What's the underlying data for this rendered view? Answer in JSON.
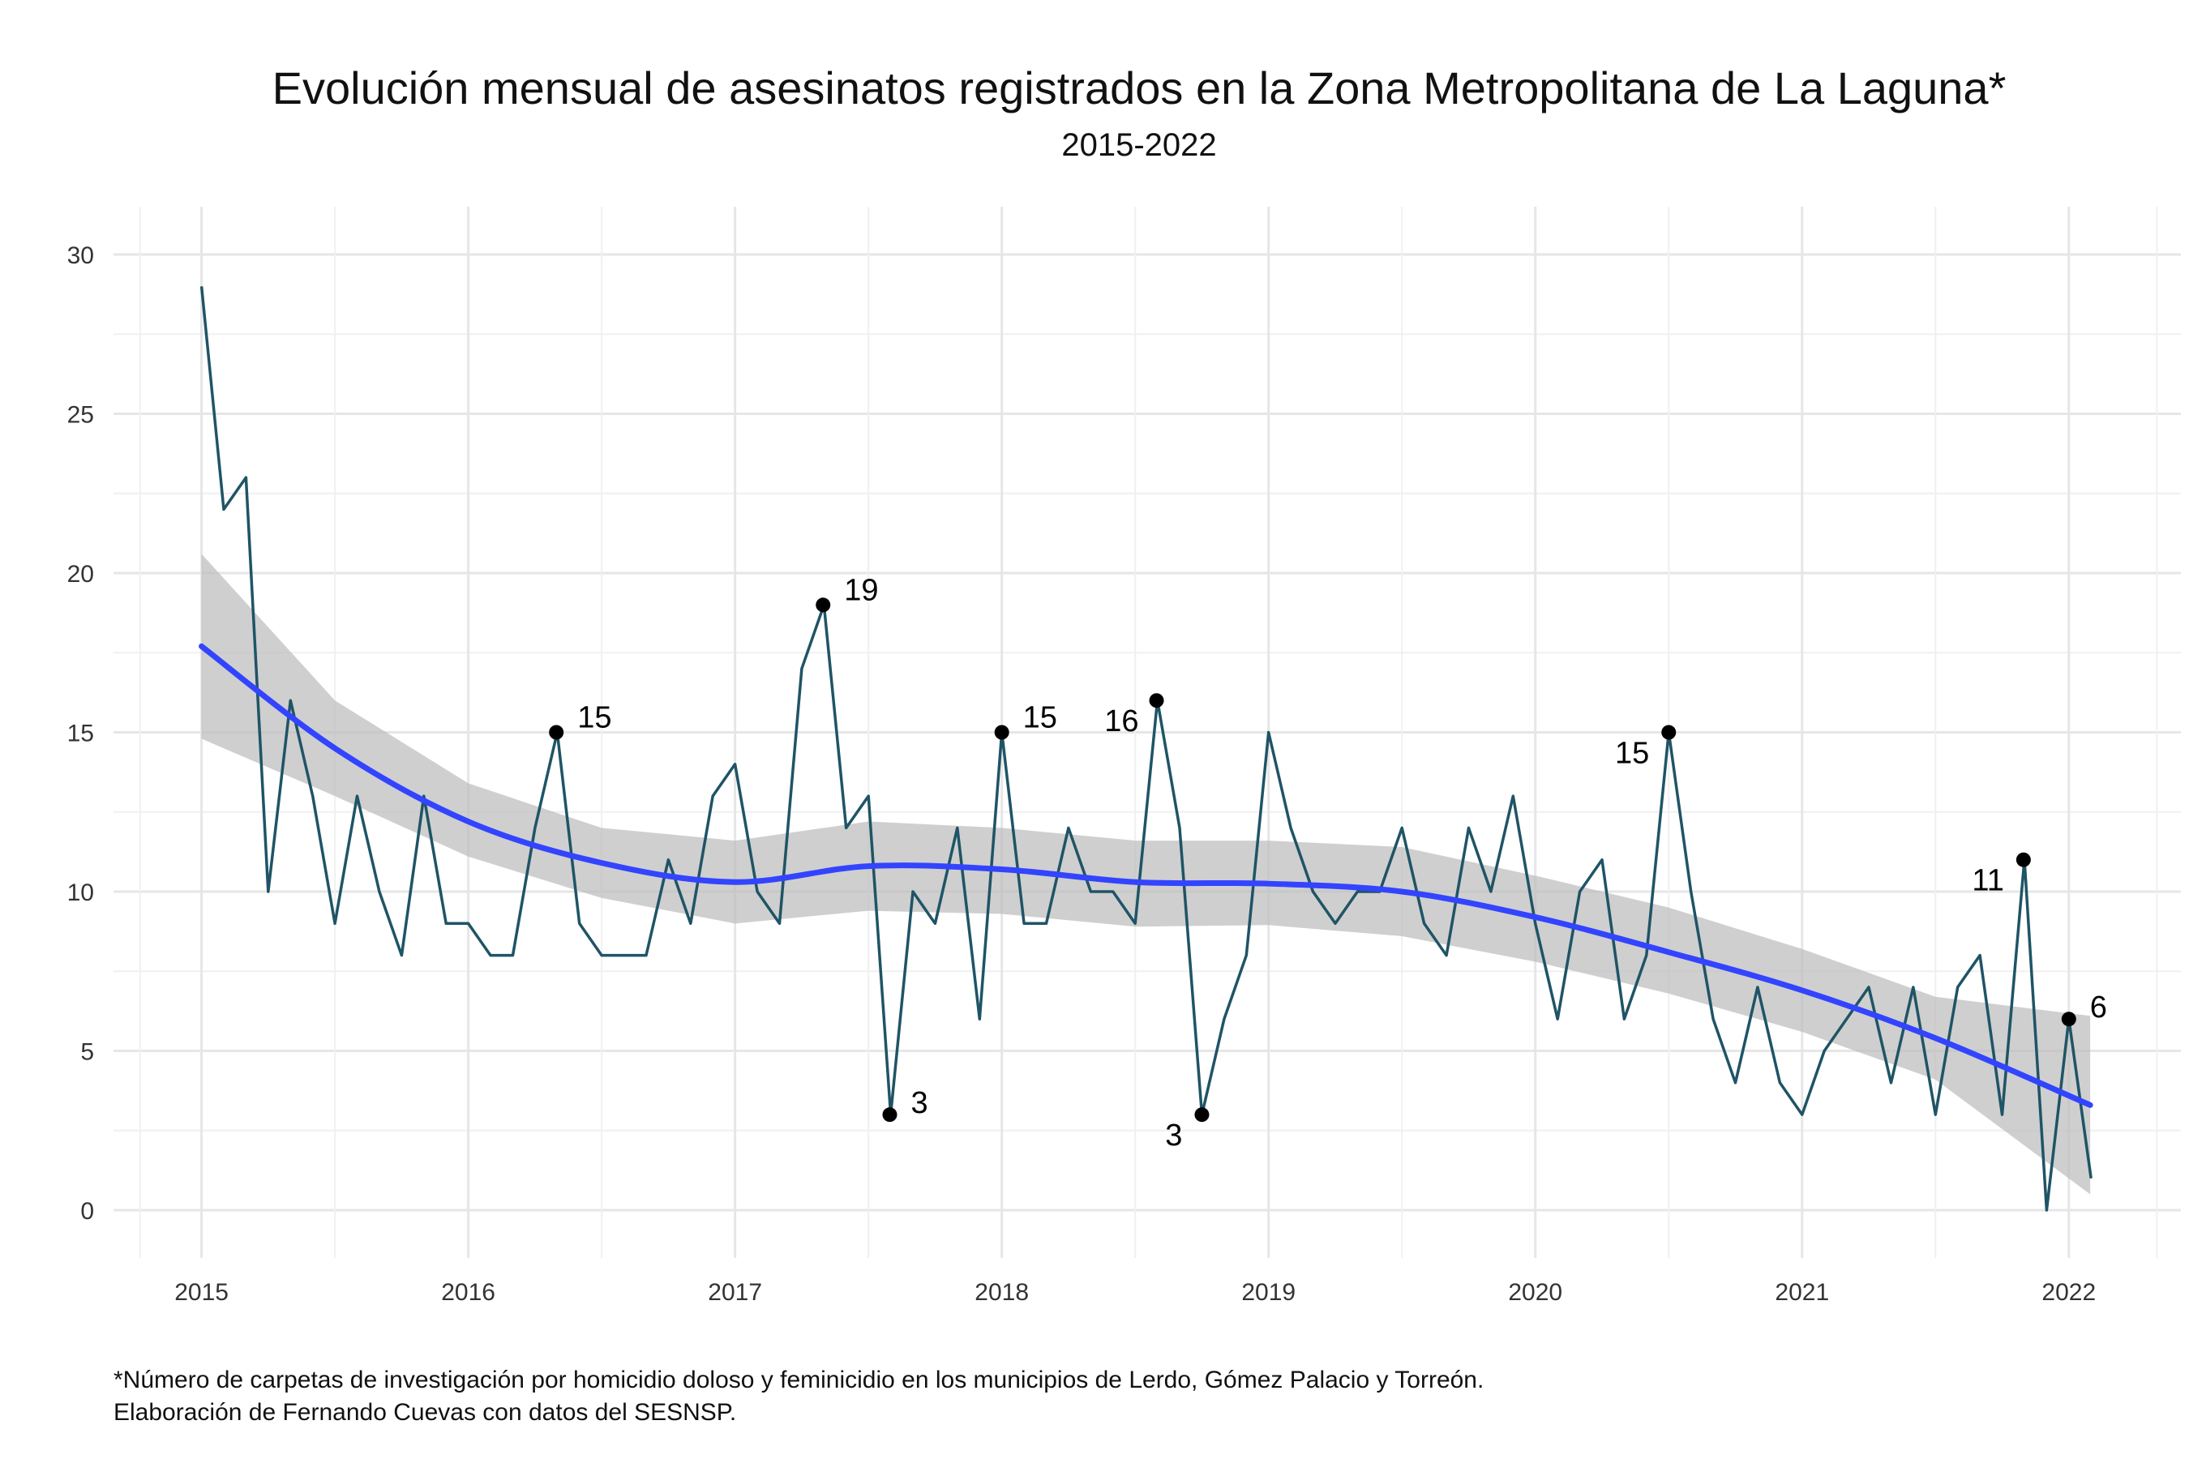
{
  "chart_data": {
    "type": "line",
    "title": "Evolución mensual de asesinatos registrados en la Zona Metropolitana de La Laguna*",
    "subtitle": "2015-2022",
    "xlabel": "",
    "ylabel": "",
    "x_ticks": [
      "2015",
      "2016",
      "2017",
      "2018",
      "2019",
      "2020",
      "2021",
      "2022"
    ],
    "y_ticks": [
      "0",
      "5",
      "10",
      "15",
      "20",
      "25",
      "30"
    ],
    "xlim": [
      2014.67,
      2022.42
    ],
    "ylim": [
      -1.5,
      31.5
    ],
    "grid": true,
    "legend": "none",
    "start_year": 2015,
    "series": [
      {
        "kind": "monthly",
        "color": "#1f5466",
        "values": [
          29,
          22,
          23,
          10,
          16,
          13,
          9,
          13,
          10,
          8,
          13,
          9,
          9,
          8,
          8,
          12,
          15,
          9,
          8,
          8,
          8,
          11,
          9,
          13,
          14,
          10,
          9,
          17,
          19,
          12,
          13,
          3,
          10,
          9,
          12,
          6,
          15,
          9,
          9,
          12,
          10,
          10,
          9,
          16,
          12,
          3,
          6,
          8,
          15,
          12,
          10,
          9,
          10,
          10,
          12,
          9,
          8,
          12,
          10,
          13,
          9,
          6,
          10,
          11,
          6,
          8,
          15,
          10,
          6,
          4,
          7,
          4,
          3,
          5,
          6,
          7,
          4,
          7,
          3,
          7,
          8,
          3,
          11,
          0,
          6,
          1
        ]
      },
      {
        "kind": "smooth",
        "color": "#3344ff",
        "x": [
          2015.0,
          2015.5,
          2016.0,
          2016.5,
          2017.0,
          2017.5,
          2018.0,
          2018.5,
          2019.0,
          2019.5,
          2020.0,
          2020.5,
          2021.0,
          2021.5,
          2022.08
        ],
        "values": [
          17.7,
          14.5,
          12.2,
          10.9,
          10.3,
          10.8,
          10.7,
          10.3,
          10.25,
          10.0,
          9.2,
          8.1,
          6.9,
          5.4,
          3.3
        ],
        "ci_low": [
          14.8,
          13.0,
          11.1,
          9.8,
          9.0,
          9.4,
          9.3,
          8.9,
          8.95,
          8.6,
          7.8,
          6.8,
          5.6,
          4.1,
          0.5
        ],
        "ci_high": [
          20.6,
          16.0,
          13.4,
          12.0,
          11.6,
          12.2,
          12.0,
          11.6,
          11.6,
          11.4,
          10.5,
          9.5,
          8.2,
          6.7,
          6.1
        ]
      }
    ],
    "annotations": [
      {
        "x": 2016.33,
        "y": 15,
        "text": "15",
        "side": "right"
      },
      {
        "x": 2017.33,
        "y": 19,
        "text": "19",
        "side": "right"
      },
      {
        "x": 2017.58,
        "y": 3,
        "text": "3",
        "side": "right"
      },
      {
        "x": 2018.0,
        "y": 15,
        "text": "15",
        "side": "right"
      },
      {
        "x": 2018.58,
        "y": 16,
        "text": "16",
        "side": "left"
      },
      {
        "x": 2018.75,
        "y": 3,
        "text": "3",
        "side": "left-below"
      },
      {
        "x": 2020.5,
        "y": 15,
        "text": "15",
        "side": "left-below"
      },
      {
        "x": 2021.83,
        "y": 11,
        "text": "11",
        "side": "left-below"
      },
      {
        "x": 2022.0,
        "y": 6,
        "text": "6",
        "side": "right"
      }
    ]
  },
  "footnote": {
    "line1": "*Número de carpetas de investigación por homicidio doloso y feminicidio en los municipios de Lerdo, Gómez Palacio y Torreón.",
    "line2": "Elaboración de Fernando Cuevas con datos del SESNSP."
  }
}
